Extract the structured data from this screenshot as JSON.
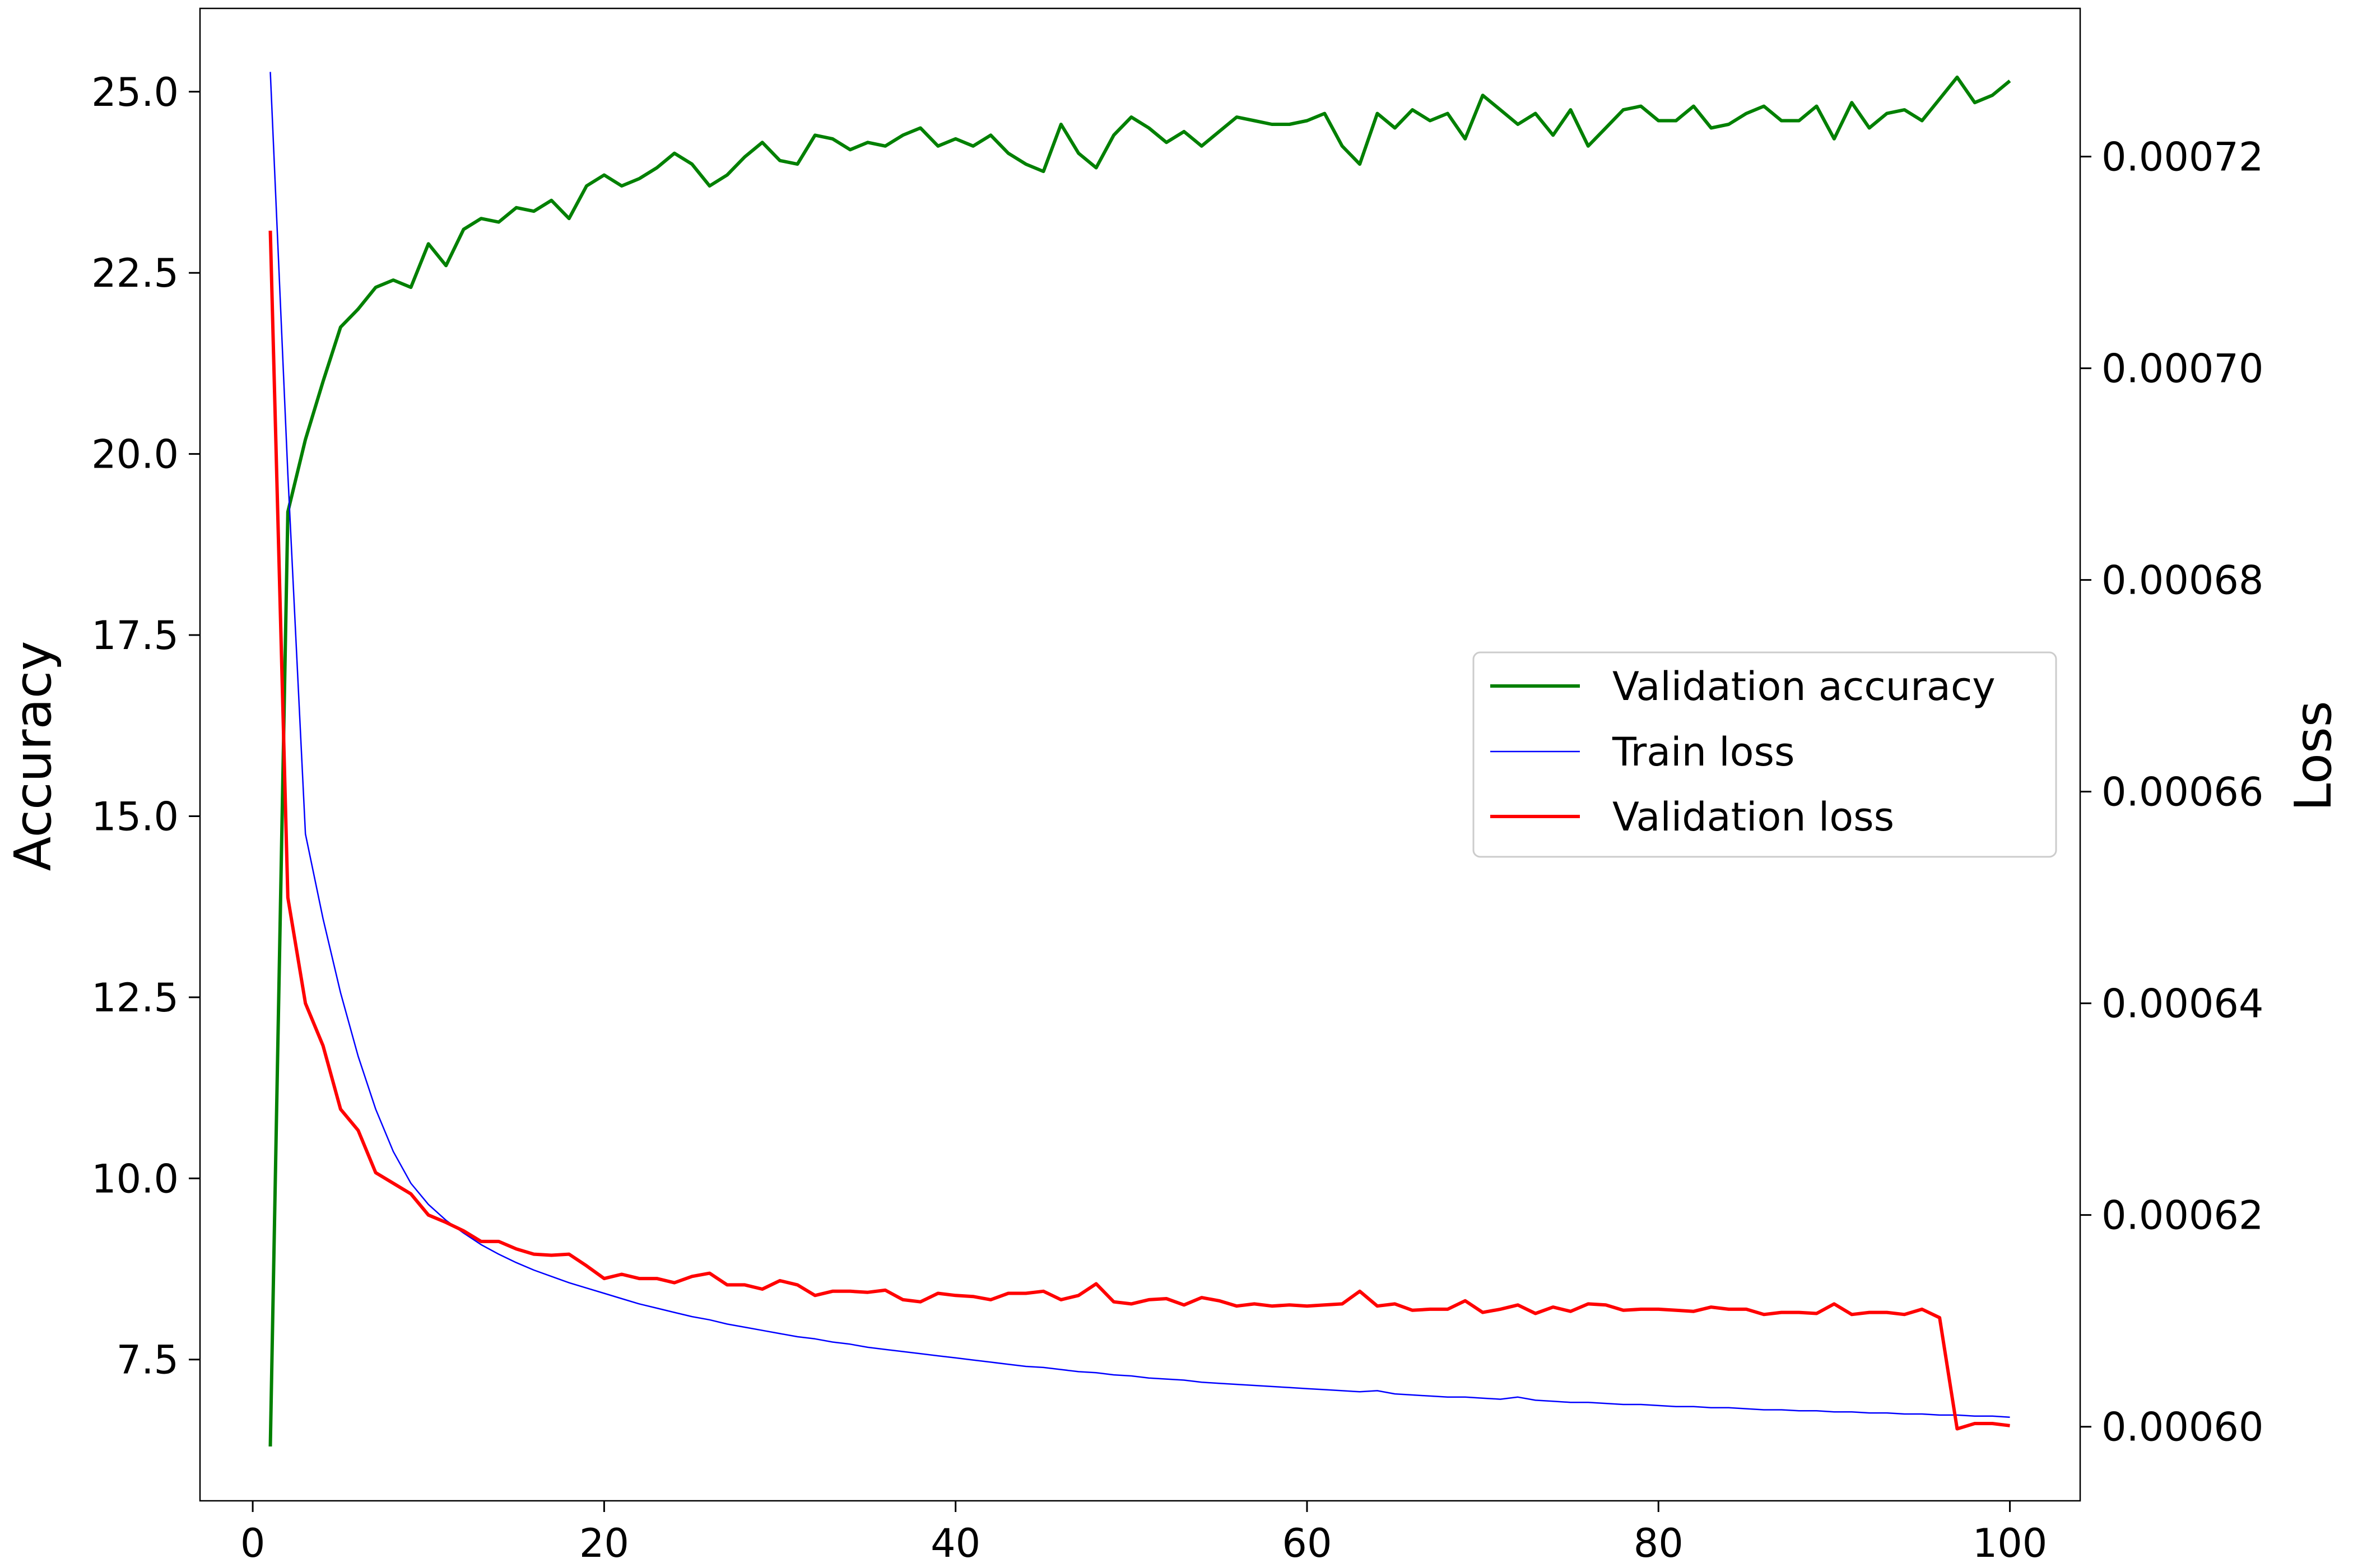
{
  "chart_data": {
    "type": "line",
    "x": [
      1,
      2,
      3,
      4,
      5,
      6,
      7,
      8,
      9,
      10,
      11,
      12,
      13,
      14,
      15,
      16,
      17,
      18,
      19,
      20,
      21,
      22,
      23,
      24,
      25,
      26,
      27,
      28,
      29,
      30,
      31,
      32,
      33,
      34,
      35,
      36,
      37,
      38,
      39,
      40,
      41,
      42,
      43,
      44,
      45,
      46,
      47,
      48,
      49,
      50,
      51,
      52,
      53,
      54,
      55,
      56,
      57,
      58,
      59,
      60,
      61,
      62,
      63,
      64,
      65,
      66,
      67,
      68,
      69,
      70,
      71,
      72,
      73,
      74,
      75,
      76,
      77,
      78,
      79,
      80,
      81,
      82,
      83,
      84,
      85,
      86,
      87,
      88,
      89,
      90,
      91,
      92,
      93,
      94,
      95,
      96,
      97,
      98,
      99,
      100
    ],
    "xlim": [
      -3,
      104
    ],
    "xticks": [
      "0",
      "20",
      "40",
      "60",
      "80",
      "100"
    ],
    "xtick_values": [
      0,
      20,
      40,
      60,
      80,
      100
    ],
    "left_axis": {
      "label": "Accuracy",
      "ylim": [
        5.55,
        26.15
      ],
      "ticks": [
        "7.5",
        "10.0",
        "12.5",
        "15.0",
        "17.5",
        "20.0",
        "22.5",
        "25.0"
      ],
      "tick_values": [
        7.5,
        10.0,
        12.5,
        15.0,
        17.5,
        20.0,
        22.5,
        25.0
      ]
    },
    "right_axis": {
      "label": "Loss",
      "ylim": [
        0.000593,
        0.000734
      ],
      "ticks": [
        "0.00060",
        "0.00062",
        "0.00064",
        "0.00066",
        "0.00068",
        "0.00070",
        "0.00072"
      ],
      "tick_values": [
        0.0006,
        0.00062,
        0.00064,
        0.00066,
        0.00068,
        0.0007,
        0.00072
      ]
    },
    "series": [
      {
        "name": "Validation accuracy",
        "axis": "left",
        "color": "#008000",
        "width": "thick",
        "values": [
          6.3,
          19.2,
          20.2,
          21.0,
          21.75,
          22.0,
          22.3,
          22.4,
          22.3,
          22.9,
          22.6,
          23.1,
          23.25,
          23.2,
          23.4,
          23.35,
          23.5,
          23.25,
          23.7,
          23.85,
          23.7,
          23.8,
          23.95,
          24.15,
          24.0,
          23.7,
          23.85,
          24.1,
          24.3,
          24.05,
          24.0,
          24.4,
          24.35,
          24.2,
          24.3,
          24.25,
          24.4,
          24.5,
          24.25,
          24.35,
          24.25,
          24.4,
          24.15,
          24.0,
          23.9,
          24.55,
          24.15,
          23.95,
          24.4,
          24.65,
          24.5,
          24.3,
          24.45,
          24.25,
          24.45,
          24.65,
          24.6,
          24.55,
          24.55,
          24.6,
          24.7,
          24.25,
          24.0,
          24.7,
          24.5,
          24.75,
          24.6,
          24.7,
          24.35,
          24.95,
          24.75,
          24.55,
          24.7,
          24.4,
          24.75,
          24.25,
          24.5,
          24.75,
          24.8,
          24.6,
          24.6,
          24.8,
          24.5,
          24.55,
          24.7,
          24.8,
          24.6,
          24.6,
          24.8,
          24.35,
          24.85,
          24.5,
          24.7,
          24.75,
          24.6,
          24.9,
          25.2,
          24.85,
          24.95,
          25.15
        ]
      },
      {
        "name": "Train loss",
        "axis": "right",
        "color": "#0000ff",
        "width": "thin",
        "values": [
          0.000728,
          0.00069,
          0.000656,
          0.000648,
          0.000641,
          0.000635,
          0.00063,
          0.000626,
          0.000623,
          0.000621,
          0.0006195,
          0.0006183,
          0.0006172,
          0.0006163,
          0.0006155,
          0.0006148,
          0.0006142,
          0.0006136,
          0.0006131,
          0.0006126,
          0.0006121,
          0.0006116,
          0.0006112,
          0.0006108,
          0.0006104,
          0.0006101,
          0.0006097,
          0.0006094,
          0.0006091,
          0.0006088,
          0.0006085,
          0.0006083,
          0.000608,
          0.0006078,
          0.0006075,
          0.0006073,
          0.0006071,
          0.0006069,
          0.0006067,
          0.0006065,
          0.0006063,
          0.0006061,
          0.0006059,
          0.0006057,
          0.0006056,
          0.0006054,
          0.0006052,
          0.0006051,
          0.0006049,
          0.0006048,
          0.0006046,
          0.0006045,
          0.0006044,
          0.0006042,
          0.0006041,
          0.000604,
          0.0006039,
          0.0006038,
          0.0006037,
          0.0006036,
          0.0006035,
          0.0006034,
          0.0006033,
          0.0006034,
          0.0006031,
          0.000603,
          0.0006029,
          0.0006028,
          0.0006028,
          0.0006027,
          0.0006026,
          0.0006028,
          0.0006025,
          0.0006024,
          0.0006023,
          0.0006023,
          0.0006022,
          0.0006021,
          0.0006021,
          0.000602,
          0.0006019,
          0.0006019,
          0.0006018,
          0.0006018,
          0.0006017,
          0.0006016,
          0.0006016,
          0.0006015,
          0.0006015,
          0.0006014,
          0.0006014,
          0.0006013,
          0.0006013,
          0.0006012,
          0.0006012,
          0.0006011,
          0.0006011,
          0.000601,
          0.000601,
          0.0006009
        ]
      },
      {
        "name": "Validation loss",
        "axis": "right",
        "color": "#ff0000",
        "width": "thick",
        "values": [
          0.000713,
          0.00065,
          0.00064,
          0.000636,
          0.00063,
          0.000628,
          0.000624,
          0.000623,
          0.000622,
          0.00062,
          0.0006193,
          0.0006185,
          0.0006175,
          0.0006175,
          0.0006168,
          0.0006163,
          0.0006162,
          0.0006163,
          0.0006152,
          0.000614,
          0.0006144,
          0.000614,
          0.000614,
          0.0006136,
          0.0006142,
          0.0006145,
          0.0006134,
          0.0006134,
          0.000613,
          0.0006138,
          0.0006134,
          0.0006124,
          0.0006128,
          0.0006128,
          0.0006127,
          0.0006129,
          0.000612,
          0.0006118,
          0.0006126,
          0.0006124,
          0.0006123,
          0.000612,
          0.0006126,
          0.0006126,
          0.0006128,
          0.000612,
          0.0006124,
          0.0006135,
          0.0006118,
          0.0006116,
          0.000612,
          0.0006121,
          0.0006115,
          0.0006122,
          0.0006119,
          0.0006114,
          0.0006116,
          0.0006114,
          0.0006115,
          0.0006114,
          0.0006115,
          0.0006116,
          0.0006128,
          0.0006114,
          0.0006116,
          0.000611,
          0.0006111,
          0.0006111,
          0.0006119,
          0.0006108,
          0.0006111,
          0.0006115,
          0.0006107,
          0.0006113,
          0.0006109,
          0.0006116,
          0.0006115,
          0.000611,
          0.0006111,
          0.0006111,
          0.000611,
          0.0006109,
          0.0006113,
          0.0006111,
          0.0006111,
          0.0006106,
          0.0006108,
          0.0006108,
          0.0006107,
          0.0006116,
          0.0006106,
          0.0006108,
          0.0006108,
          0.0006106,
          0.0006111,
          0.0006103,
          0.0005998,
          0.0006003,
          0.0006003,
          0.0006001
        ]
      }
    ],
    "legend": {
      "placement": "center-right",
      "entries": [
        "Validation accuracy",
        "Train loss",
        "Validation loss"
      ]
    },
    "grid": false
  }
}
